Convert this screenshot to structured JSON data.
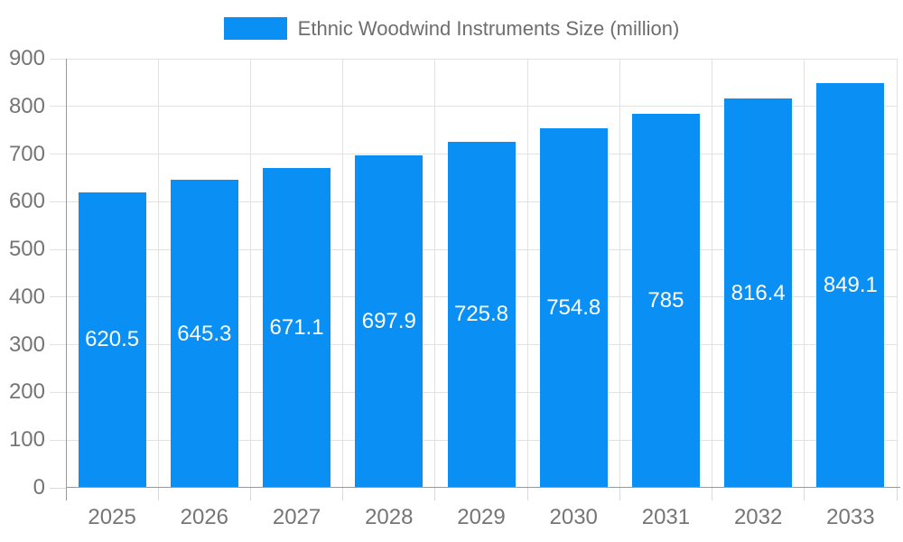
{
  "legend": {
    "label": "Ethnic Woodwind Instruments Size (million)"
  },
  "chart_data": {
    "type": "bar",
    "title": "Ethnic Woodwind Instruments Size (million)",
    "categories": [
      "2025",
      "2026",
      "2027",
      "2028",
      "2029",
      "2030",
      "2031",
      "2032",
      "2033"
    ],
    "values": [
      620.5,
      645.3,
      671.1,
      697.9,
      725.8,
      754.8,
      785,
      816.4,
      849.1
    ],
    "value_labels": [
      "620.5",
      "645.3",
      "671.1",
      "697.9",
      "725.8",
      "754.8",
      "785",
      "816.4",
      "849.1"
    ],
    "xlabel": "",
    "ylabel": "",
    "ylim": [
      0,
      900
    ],
    "y_step": 100,
    "y_tick_labels": [
      "0",
      "100",
      "200",
      "300",
      "400",
      "500",
      "600",
      "700",
      "800",
      "900"
    ],
    "grid": true,
    "legend_position": "top-center",
    "value_label_position": "inside-center",
    "colors": {
      "bar": "#0A90F5",
      "grid": "#e2e2e2",
      "tick": "#d9d9d9",
      "axis": "#999999",
      "axis_label_text": "#757575",
      "title_text": "#6e6e6e",
      "value_label_text": "#ffffff",
      "background": "#ffffff"
    }
  }
}
